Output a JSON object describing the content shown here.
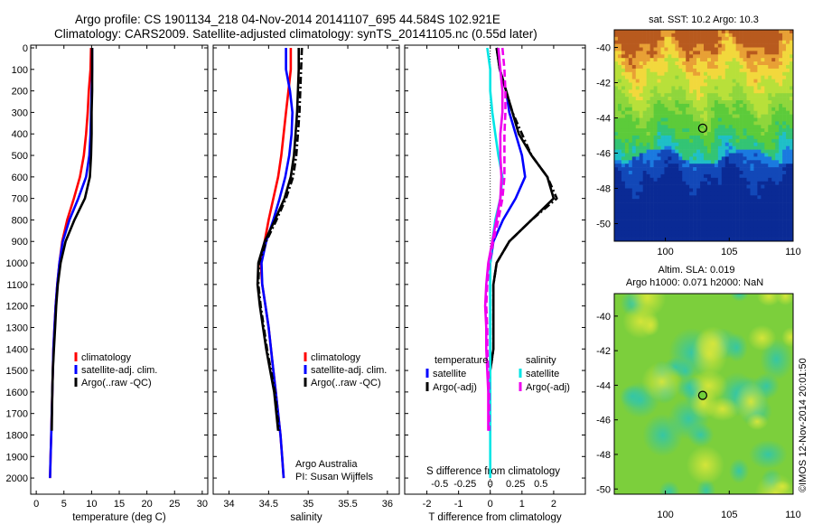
{
  "header": {
    "line1": "Argo profile: CS 1901134_218 04-Nov-2014 20141107_695 44.584S 102.921E",
    "line2": "Climatology: CARS2009. Satellite-adjusted climatology: synTS_20141105.nc (0.55d later)"
  },
  "side_label": "©IMOS 12-Nov-2014 20:01:50",
  "colors": {
    "red": "#ff0000",
    "blue": "#0000ff",
    "black": "#000000",
    "cyan": "#00e5e5",
    "magenta": "#ee00ee"
  },
  "chart_data": [
    {
      "id": "temperature",
      "type": "line",
      "xlabel": "temperature (deg C)",
      "xlim": [
        -1,
        31
      ],
      "ylim": [
        0,
        2050
      ],
      "y_reversed": true,
      "xticks": [
        0,
        5,
        10,
        15,
        20,
        25,
        30
      ],
      "yticks": [
        0,
        100,
        200,
        300,
        400,
        500,
        600,
        700,
        800,
        900,
        1000,
        1100,
        1200,
        1300,
        1400,
        1500,
        1600,
        1700,
        1800,
        1900,
        2000
      ],
      "legend": [
        "climatology",
        "satellite-adj. clim.",
        "Argo(..raw -QC)"
      ],
      "series": [
        {
          "name": "climatology",
          "color": "#ff0000",
          "dash": "",
          "x": [
            9.9,
            9.8,
            9.5,
            9.3,
            9.0,
            8.6,
            7.9,
            6.8,
            5.6,
            4.7,
            4.2,
            3.8,
            3.5,
            3.3,
            3.1,
            3.0,
            2.9,
            2.8,
            2.7,
            2.6,
            2.5
          ],
          "y": [
            0,
            100,
            200,
            300,
            400,
            500,
            600,
            700,
            800,
            900,
            1000,
            1100,
            1200,
            1300,
            1400,
            1500,
            1600,
            1700,
            1800,
            1900,
            2000
          ]
        },
        {
          "name": "satellite-adj. clim.",
          "color": "#0000ff",
          "dash": "",
          "x": [
            10.1,
            10.1,
            10.0,
            9.9,
            9.8,
            9.6,
            9.0,
            7.6,
            6.0,
            4.8,
            4.2,
            3.8,
            3.5,
            3.3,
            3.1,
            3.0,
            2.9,
            2.8,
            2.7,
            2.6,
            2.5
          ],
          "y": [
            0,
            100,
            200,
            300,
            400,
            500,
            600,
            700,
            800,
            900,
            1000,
            1100,
            1200,
            1300,
            1400,
            1500,
            1600,
            1700,
            1800,
            1900,
            2000
          ]
        },
        {
          "name": "Argo(..raw -QC)",
          "color": "#000000",
          "dash": "",
          "x": [
            10.1,
            10.1,
            10.1,
            10.0,
            10.0,
            9.9,
            9.7,
            8.8,
            6.9,
            5.3,
            4.4,
            3.9,
            3.6,
            3.4,
            3.2,
            3.0,
            2.9,
            2.8
          ],
          "y": [
            0,
            100,
            200,
            300,
            400,
            500,
            600,
            700,
            800,
            900,
            1000,
            1100,
            1200,
            1300,
            1400,
            1500,
            1600,
            1780
          ]
        }
      ]
    },
    {
      "id": "salinity",
      "type": "line",
      "xlabel": "salinity",
      "xlim": [
        33.8,
        36.15
      ],
      "ylim": [
        0,
        2050
      ],
      "y_reversed": true,
      "xticks": [
        34,
        34.5,
        35,
        35.5,
        36
      ],
      "legend": [
        "climatology",
        "satellite-adj. clim.",
        "Argo(..raw -QC)"
      ],
      "annotation": [
        "Argo Australia",
        "PI: Susan Wijffels"
      ],
      "series": [
        {
          "name": "climatology",
          "color": "#ff0000",
          "dash": "",
          "x": [
            34.78,
            34.78,
            34.75,
            34.72,
            34.69,
            34.66,
            34.62,
            34.56,
            34.5,
            34.45,
            34.4,
            34.42,
            34.46,
            34.5,
            34.53,
            34.56,
            34.59,
            34.62,
            34.65,
            34.67,
            34.69
          ],
          "y": [
            0,
            100,
            200,
            300,
            400,
            500,
            600,
            700,
            800,
            900,
            1000,
            1100,
            1200,
            1300,
            1400,
            1500,
            1600,
            1700,
            1800,
            1900,
            2000
          ]
        },
        {
          "name": "satellite-adj. clim.",
          "color": "#0000ff",
          "dash": "",
          "x": [
            34.72,
            34.72,
            34.77,
            34.8,
            34.79,
            34.76,
            34.71,
            34.64,
            34.56,
            34.47,
            34.41,
            34.42,
            34.46,
            34.5,
            34.53,
            34.56,
            34.59,
            34.62,
            34.65,
            34.67,
            34.69
          ],
          "y": [
            0,
            100,
            200,
            300,
            400,
            500,
            600,
            700,
            800,
            900,
            1000,
            1100,
            1200,
            1300,
            1400,
            1500,
            1600,
            1700,
            1800,
            1900,
            2000
          ]
        },
        {
          "name": "Argo(..raw -QC)",
          "color": "#000000",
          "dash": "",
          "x": [
            34.88,
            34.88,
            34.87,
            34.86,
            34.84,
            34.82,
            34.78,
            34.7,
            34.58,
            34.45,
            34.37,
            34.36,
            34.39,
            34.43,
            34.47,
            34.52,
            34.57,
            34.62
          ],
          "y": [
            0,
            100,
            200,
            300,
            400,
            500,
            600,
            700,
            800,
            900,
            1000,
            1100,
            1200,
            1300,
            1400,
            1500,
            1600,
            1780
          ]
        },
        {
          "name": "Argo(-adj)",
          "color": "#000000",
          "dash": "8,3,2,3",
          "x": [
            34.92,
            34.91,
            34.9,
            34.89,
            34.87,
            34.85,
            34.81,
            34.72,
            34.6,
            34.47,
            34.38,
            34.37,
            34.4,
            34.44,
            34.48,
            34.53,
            34.58,
            34.63
          ],
          "y": [
            0,
            100,
            200,
            300,
            400,
            500,
            600,
            700,
            800,
            900,
            1000,
            1100,
            1200,
            1300,
            1400,
            1500,
            1600,
            1780
          ]
        }
      ]
    },
    {
      "id": "difference",
      "type": "line",
      "xlabel": "T difference from climatology",
      "xlabel_top": "S difference from climatology",
      "xlim": [
        -2.7,
        3.0
      ],
      "ylim": [
        0,
        2050
      ],
      "y_reversed": true,
      "xticks": [
        -2,
        -1,
        0,
        1,
        2
      ],
      "xticks_top": [
        -0.5,
        -0.25,
        0,
        0.25,
        0.5
      ],
      "legend_left_title": "temperature",
      "legend_right_title": "salinity",
      "legend": [
        "satellite",
        "Argo(-adj)",
        "satellite",
        "Argo(-adj)"
      ],
      "series": [
        {
          "name": "T satellite",
          "color": "#0000ff",
          "dash": "",
          "x": [
            0.2,
            0.3,
            0.5,
            0.6,
            0.8,
            1.0,
            1.1,
            0.8,
            0.4,
            0.1,
            0.0,
            0.0,
            0.0,
            0.0,
            0.0,
            0.0,
            0.0,
            0.0
          ],
          "y": [
            0,
            100,
            200,
            300,
            400,
            500,
            600,
            700,
            800,
            900,
            1000,
            1100,
            1200,
            1300,
            1400,
            1500,
            1600,
            1780
          ]
        },
        {
          "name": "T Argo(-adj)",
          "color": "#000000",
          "dash": "",
          "x": [
            0.2,
            0.3,
            0.5,
            0.7,
            0.9,
            1.3,
            1.8,
            2.0,
            1.3,
            0.6,
            0.2,
            0.1,
            0.1,
            0.1,
            0.1,
            0.0,
            0.0,
            0.0
          ],
          "y": [
            0,
            100,
            200,
            300,
            400,
            500,
            600,
            700,
            800,
            900,
            1000,
            1100,
            1200,
            1300,
            1400,
            1500,
            1600,
            1780
          ]
        },
        {
          "name": "T Argo raw",
          "color": "#000000",
          "dash": "8,3,2,3",
          "x": [
            0.2,
            0.3,
            0.5,
            0.7,
            1.0,
            1.3,
            1.8,
            2.1,
            1.3,
            0.6,
            0.2,
            0.1,
            0.1,
            0.1,
            0.1,
            0.0,
            0.0,
            0.0
          ],
          "y": [
            0,
            100,
            200,
            300,
            400,
            500,
            600,
            700,
            800,
            900,
            1000,
            1100,
            1200,
            1300,
            1400,
            1500,
            1600,
            1780
          ]
        },
        {
          "name": "S satellite",
          "color": "#00e5e5",
          "dash": "",
          "x": [
            -0.03,
            0.0,
            0.0,
            0.02,
            0.05,
            0.08,
            0.12,
            0.1,
            0.05,
            0.02,
            0.0,
            0.0,
            0.0,
            0.0,
            0.0,
            0.0,
            0.0,
            0.0,
            0.0,
            0.0,
            0.0
          ],
          "y": [
            0,
            100,
            200,
            300,
            400,
            500,
            600,
            700,
            800,
            900,
            1000,
            1100,
            1200,
            1300,
            1400,
            1500,
            1600,
            1700,
            1800,
            1900,
            2000
          ]
        },
        {
          "name": "S Argo(-adj)",
          "color": "#ee00ee",
          "dash": "",
          "x": [
            0.08,
            0.1,
            0.12,
            0.12,
            0.1,
            0.1,
            0.11,
            0.1,
            0.06,
            0.02,
            -0.02,
            -0.04,
            -0.05,
            -0.04,
            -0.04,
            -0.03,
            -0.02,
            -0.02
          ],
          "y": [
            0,
            100,
            200,
            300,
            400,
            500,
            600,
            700,
            800,
            900,
            1000,
            1100,
            1200,
            1300,
            1400,
            1500,
            1600,
            1780
          ]
        },
        {
          "name": "S Argo raw",
          "color": "#ee00ee",
          "dash": "8,4",
          "x": [
            0.12,
            0.14,
            0.15,
            0.15,
            0.14,
            0.14,
            0.14,
            0.12,
            0.08,
            0.03,
            -0.01,
            -0.03,
            -0.04,
            -0.03,
            -0.03,
            -0.02,
            -0.01,
            -0.01
          ],
          "y": [
            0,
            100,
            200,
            300,
            400,
            500,
            600,
            700,
            800,
            900,
            1000,
            1100,
            1200,
            1300,
            1400,
            1500,
            1600,
            1780
          ]
        }
      ]
    },
    {
      "id": "sst_map",
      "type": "heatmap",
      "title": "sat. SST: 10.2 Argo: 10.3",
      "xlim": [
        96,
        110
      ],
      "ylim": [
        -51,
        -39
      ],
      "xticks": [
        100,
        105,
        110
      ],
      "yticks": [
        -40,
        -42,
        -44,
        -46,
        -48,
        -50
      ],
      "marker": {
        "lon": 102.921,
        "lat": -44.584
      }
    },
    {
      "id": "sla_map",
      "type": "heatmap",
      "title": "Altim. SLA: 0.019",
      "title2": "Argo h1000: 0.071 h2000: NaN",
      "xlim": [
        96,
        110
      ],
      "ylim": [
        -50.3,
        -38.7
      ],
      "xticks": [
        100,
        105,
        110
      ],
      "yticks": [
        -40,
        -42,
        -44,
        -46,
        -48,
        -50
      ],
      "marker": {
        "lon": 102.921,
        "lat": -44.584
      }
    }
  ]
}
